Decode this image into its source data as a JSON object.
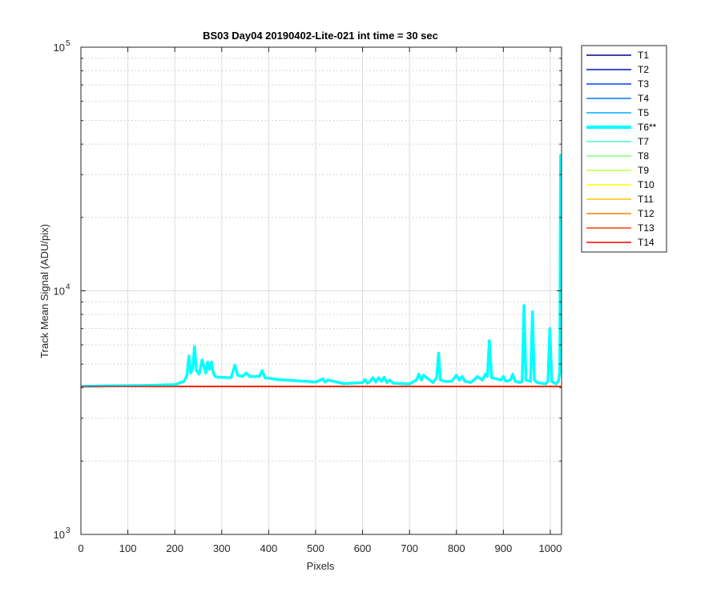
{
  "chart_data": {
    "type": "line",
    "title": "BS03 Day04 20190402-Lite-021 int time = 30 sec",
    "xlabel": "Pixels",
    "ylabel": "Track Mean Signal (ADU/pix)",
    "xlim": [
      0,
      1024
    ],
    "ylim": [
      1000,
      100000
    ],
    "yscale": "log",
    "xticks": [
      0,
      100,
      200,
      300,
      400,
      500,
      600,
      700,
      800,
      900,
      1000
    ],
    "yticks": [
      {
        "value": 1000,
        "base": "10",
        "exp": "3"
      },
      {
        "value": 10000,
        "base": "10",
        "exp": "4"
      },
      {
        "value": 100000,
        "base": "10",
        "exp": "5"
      }
    ],
    "grid": true,
    "legend_position": "outside-top-right",
    "series": [
      {
        "name": "T1",
        "color": "#00008f",
        "highlight": false
      },
      {
        "name": "T2",
        "color": "#0010c8",
        "highlight": false
      },
      {
        "name": "T3",
        "color": "#0040f0",
        "highlight": false
      },
      {
        "name": "T4",
        "color": "#0078ff",
        "highlight": false
      },
      {
        "name": "T5",
        "color": "#00aaff",
        "highlight": false
      },
      {
        "name": "T6**",
        "color": "#00ffff",
        "highlight": true,
        "x": [
          0,
          50,
          100,
          150,
          200,
          220,
          226,
          230,
          234,
          238,
          242,
          246,
          252,
          258,
          262,
          266,
          270,
          274,
          278,
          282,
          286,
          292,
          320,
          328,
          334,
          345,
          352,
          360,
          380,
          386,
          392,
          420,
          440,
          500,
          515,
          520,
          526,
          560,
          600,
          605,
          610,
          615,
          622,
          628,
          634,
          640,
          646,
          652,
          658,
          665,
          700,
          715,
          720,
          725,
          730,
          750,
          758,
          762,
          766,
          775,
          790,
          800,
          806,
          812,
          818,
          830,
          840,
          845,
          855,
          862,
          866,
          870,
          875,
          895,
          900,
          905,
          915,
          920,
          925,
          935,
          940,
          944,
          948,
          958,
          962,
          966,
          972,
          990,
          995,
          999,
          1003,
          1012,
          1017,
          1020,
          1022,
          1024
        ],
        "y": [
          4050,
          4070,
          4080,
          4090,
          4120,
          4250,
          4500,
          5400,
          4600,
          4800,
          5900,
          4700,
          4550,
          5200,
          4900,
          4600,
          5100,
          4750,
          5100,
          4600,
          4450,
          4420,
          4400,
          4950,
          4500,
          4450,
          4600,
          4450,
          4450,
          4700,
          4400,
          4320,
          4300,
          4220,
          4350,
          4220,
          4300,
          4160,
          4200,
          4320,
          4180,
          4230,
          4400,
          4220,
          4400,
          4250,
          4420,
          4200,
          4300,
          4180,
          4150,
          4300,
          4550,
          4300,
          4500,
          4200,
          4400,
          5550,
          4300,
          4250,
          4250,
          4500,
          4300,
          4450,
          4250,
          4200,
          4350,
          4450,
          4300,
          4550,
          4450,
          6250,
          4400,
          4300,
          4450,
          4250,
          4300,
          4550,
          4250,
          4200,
          4250,
          8700,
          4300,
          4250,
          8200,
          4300,
          4200,
          4150,
          4250,
          7000,
          4250,
          4150,
          4250,
          4600,
          36000,
          36000
        ]
      },
      {
        "name": "T7",
        "color": "#44ffc0",
        "highlight": false
      },
      {
        "name": "T8",
        "color": "#80ff80",
        "highlight": false
      },
      {
        "name": "T9",
        "color": "#c0ff40",
        "highlight": false
      },
      {
        "name": "T10",
        "color": "#ffff00",
        "highlight": false
      },
      {
        "name": "T11",
        "color": "#ffc000",
        "highlight": false
      },
      {
        "name": "T12",
        "color": "#ff8000",
        "highlight": false
      },
      {
        "name": "T13",
        "color": "#ff4000",
        "highlight": false
      },
      {
        "name": "T14",
        "color": "#ff0000",
        "highlight": false
      }
    ],
    "baseline_series_value": 4050
  }
}
